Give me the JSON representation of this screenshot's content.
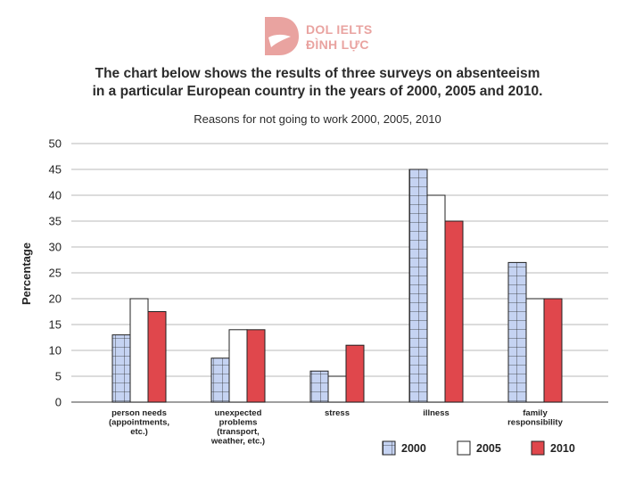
{
  "brand": {
    "line1": "DOL IELTS",
    "line2": "ĐÌNH LỰC",
    "color": "#e9a3a0"
  },
  "heading": {
    "line1": "The chart below shows the results of three surveys on absenteeism",
    "line2": "in a particular European country in the years of 2000, 2005 and 2010."
  },
  "chart_data": {
    "type": "bar",
    "title": "Reasons for not going to work 2000, 2005, 2010",
    "ylabel": "Percentage",
    "xlabel": "",
    "ylim": [
      0,
      50
    ],
    "yticks": [
      0,
      5,
      10,
      15,
      20,
      25,
      30,
      35,
      40,
      45,
      50
    ],
    "grid": true,
    "legend_position": "bottom-right",
    "categories": [
      [
        "person needs",
        "(appointments,",
        "etc.)"
      ],
      [
        "unexpected",
        "problems",
        "(transport,",
        "weather, etc.)"
      ],
      [
        "stress"
      ],
      [
        "illness"
      ],
      [
        "family",
        "responsibility"
      ]
    ],
    "series": [
      {
        "name": "2000",
        "values": [
          13,
          8.5,
          6,
          45,
          27
        ],
        "color": "#c5d3f2",
        "pattern": "grid"
      },
      {
        "name": "2005",
        "values": [
          20,
          14,
          5,
          40,
          20
        ],
        "color": "#ffffff",
        "pattern": "none"
      },
      {
        "name": "2010",
        "values": [
          17.5,
          14,
          11,
          35,
          20
        ],
        "color": "#e0474c",
        "pattern": "none"
      }
    ]
  }
}
